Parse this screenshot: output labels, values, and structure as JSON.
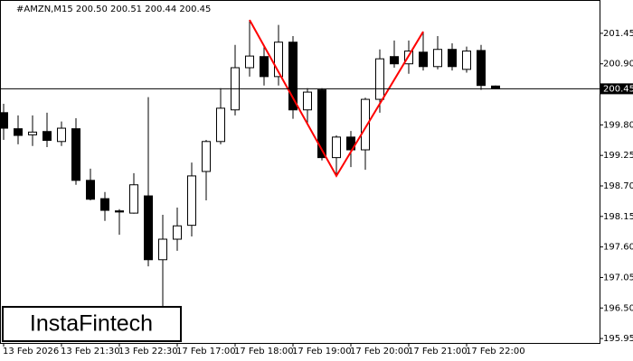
{
  "chart_data": {
    "type": "candlestick",
    "title": "#AMZN,M15  200.50 200.51 200.44 200.45",
    "categories": [
      "13 Feb 2026",
      null,
      null,
      null,
      "13 Feb 21:30",
      null,
      null,
      null,
      "13 Feb 22:30",
      null,
      null,
      null,
      "17 Feb 17:00",
      null,
      null,
      null,
      "17 Feb 18:00",
      null,
      null,
      null,
      "17 Feb 19:00",
      null,
      null,
      null,
      "17 Feb 20:00",
      null,
      null,
      null,
      "17 Feb 21:00",
      null,
      null,
      null,
      "17 Feb 22:00",
      null,
      null
    ],
    "open": [
      200.02,
      199.73,
      199.62,
      199.68,
      199.5,
      199.73,
      198.8,
      198.47,
      198.25,
      198.21,
      198.52,
      197.37,
      197.74,
      197.99,
      198.96,
      199.5,
      200.07,
      200.83,
      201.03,
      200.67,
      201.29,
      200.07,
      200.43,
      199.21,
      199.58,
      199.35,
      200.26,
      201.03,
      200.9,
      201.11,
      200.85,
      201.16,
      200.8,
      201.14,
      200.5
    ],
    "high": [
      200.18,
      199.97,
      199.97,
      200.02,
      199.86,
      199.92,
      199.01,
      198.59,
      198.28,
      198.93,
      200.3,
      198.18,
      198.31,
      199.12,
      199.53,
      200.46,
      201.24,
      201.69,
      201.21,
      201.6,
      201.4,
      200.46,
      200.46,
      199.61,
      199.69,
      200.29,
      201.16,
      201.32,
      201.32,
      201.48,
      201.4,
      201.27,
      201.21,
      201.24,
      200.51
    ],
    "low": [
      199.53,
      199.45,
      199.42,
      199.4,
      199.42,
      198.72,
      198.44,
      198.07,
      197.82,
      198.2,
      197.25,
      196.44,
      197.53,
      197.79,
      198.44,
      199.45,
      199.97,
      200.67,
      200.51,
      200.51,
      199.91,
      199.82,
      199.16,
      198.88,
      199.04,
      198.99,
      200.02,
      200.83,
      200.72,
      200.78,
      200.8,
      200.78,
      200.74,
      200.43,
      200.44
    ],
    "close": [
      199.74,
      199.61,
      199.67,
      199.52,
      199.74,
      198.8,
      198.46,
      198.26,
      198.23,
      198.72,
      197.37,
      197.74,
      197.98,
      198.88,
      199.5,
      200.1,
      200.83,
      201.04,
      200.67,
      201.29,
      200.07,
      200.39,
      199.21,
      199.58,
      199.35,
      200.26,
      200.99,
      200.9,
      201.13,
      200.85,
      201.16,
      200.85,
      201.13,
      200.51,
      200.45
    ],
    "up_color": "#ffffff",
    "down_color": "#000000",
    "ylim": [
      195.87,
      202.05
    ],
    "yticks": [
      201.45,
      {
        "value": 200.9,
        "label": "200.90"
      },
      {
        "value": 199.8,
        "label": "199.80"
      },
      199.25,
      {
        "value": 198.7,
        "label": "198.70"
      },
      198.15,
      {
        "value": 197.6,
        "label": "197.60"
      },
      197.05,
      {
        "value": 196.5,
        "label": "196.50"
      },
      195.95
    ],
    "last_price": {
      "value": 200.45,
      "label": "200.45"
    },
    "pattern": {
      "color": "#ff0000",
      "candles": [
        17,
        23,
        29
      ],
      "values": [
        201.69,
        198.88,
        201.48
      ]
    }
  },
  "logo": "InstaFintech"
}
